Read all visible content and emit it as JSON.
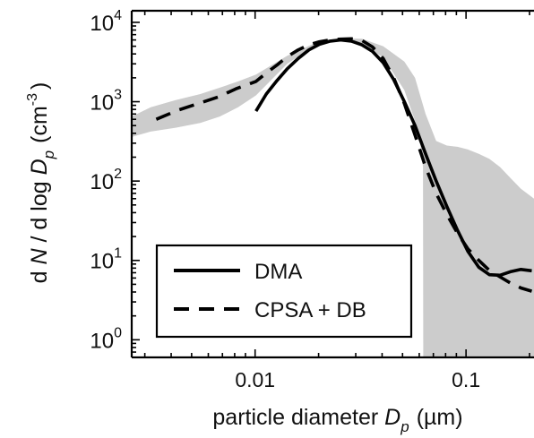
{
  "chart_data": {
    "type": "line",
    "xscale": "log",
    "yscale": "log",
    "xlim": [
      0.0026,
      0.21
    ],
    "ylim": [
      0.6,
      14000
    ],
    "xlabel_main": "particle diameter",
    "xlabel_symbol": "D",
    "xlabel_sub": "p",
    "xlabel_unit": "(µm)",
    "ylabel_pre": "d",
    "ylabel_N": "N",
    "ylabel_mid": "/ d log",
    "ylabel_D": "D",
    "ylabel_sub": "p",
    "ylabel_unit_open": "(cm",
    "ylabel_unit_exp": "-3",
    "ylabel_unit_close": ")",
    "xticks": [
      {
        "value": 0.01,
        "label": "0.01"
      },
      {
        "value": 0.1,
        "label": "0.1"
      }
    ],
    "yticks": [
      {
        "value": 1,
        "base": "10",
        "exp": "0"
      },
      {
        "value": 10,
        "base": "10",
        "exp": "1"
      },
      {
        "value": 100,
        "base": "10",
        "exp": "2"
      },
      {
        "value": 1000,
        "base": "10",
        "exp": "3"
      },
      {
        "value": 10000,
        "base": "10",
        "exp": "4"
      }
    ],
    "legend_position": "bottom-left",
    "series": [
      {
        "name": "DMA",
        "style": "solid",
        "color": "#000000",
        "x": [
          0.0101,
          0.0113,
          0.0127,
          0.0142,
          0.016,
          0.018,
          0.0202,
          0.0227,
          0.0255,
          0.0286,
          0.0321,
          0.036,
          0.0405,
          0.0454,
          0.051,
          0.0573,
          0.0643,
          0.0722,
          0.0811,
          0.0911,
          0.102,
          0.115,
          0.129,
          0.145,
          0.162,
          0.182,
          0.205
        ],
        "y": [
          760,
          1250,
          1850,
          2600,
          3500,
          4500,
          5300,
          5800,
          6000,
          5800,
          5200,
          4300,
          3100,
          1900,
          1000,
          500,
          220,
          100,
          48,
          24,
          13,
          8.2,
          6.6,
          6.5,
          7.2,
          7.7,
          7.4
        ]
      },
      {
        "name": "CPSA + DB",
        "style": "dashed",
        "color": "#000000",
        "x": [
          0.0034,
          0.0043,
          0.0054,
          0.0067,
          0.0081,
          0.0101,
          0.0113,
          0.0127,
          0.0142,
          0.016,
          0.018,
          0.0202,
          0.0227,
          0.0255,
          0.0286,
          0.0321,
          0.036,
          0.0405,
          0.0454,
          0.051,
          0.0573,
          0.0643,
          0.0722,
          0.0811,
          0.0911,
          0.102,
          0.115,
          0.129,
          0.145,
          0.162,
          0.182,
          0.205
        ],
        "y": [
          600,
          780,
          950,
          1150,
          1450,
          1800,
          2300,
          2900,
          3700,
          4500,
          5200,
          5700,
          6000,
          6150,
          6200,
          5900,
          4900,
          3500,
          2000,
          950,
          380,
          150,
          70,
          38,
          22,
          14,
          10,
          7.5,
          6.2,
          5.2,
          4.5,
          4.1
        ]
      }
    ],
    "band": {
      "description_color": "#cccccc",
      "upper": {
        "x": [
          0.0026,
          0.0032,
          0.0042,
          0.0055,
          0.0068,
          0.0083,
          0.0101,
          0.0142,
          0.0202,
          0.0255,
          0.0321,
          0.0405,
          0.051,
          0.0573,
          0.0643,
          0.0722,
          0.0811,
          0.0911,
          0.102,
          0.115,
          0.129,
          0.145,
          0.162,
          0.182,
          0.21
        ],
        "y": [
          650,
          850,
          1050,
          1250,
          1500,
          1800,
          2200,
          3800,
          5800,
          6300,
          6200,
          5000,
          3200,
          2000,
          700,
          320,
          280,
          270,
          250,
          220,
          190,
          150,
          110,
          80,
          60
        ]
      },
      "lower": {
        "x": [
          0.0026,
          0.0032,
          0.0042,
          0.0055,
          0.0068,
          0.0083,
          0.0101,
          0.0142,
          0.0202,
          0.0255,
          0.0321,
          0.0405,
          0.051,
          0.06,
          0.0625,
          0.0627,
          0.21
        ],
        "y": [
          360,
          420,
          470,
          540,
          650,
          850,
          1200,
          3000,
          5600,
          6000,
          5400,
          3600,
          1400,
          400,
          150,
          0.6,
          0.6
        ]
      }
    },
    "legend": [
      {
        "label": "DMA",
        "style": "solid"
      },
      {
        "label": "CPSA + DB",
        "style": "dashed"
      }
    ]
  }
}
